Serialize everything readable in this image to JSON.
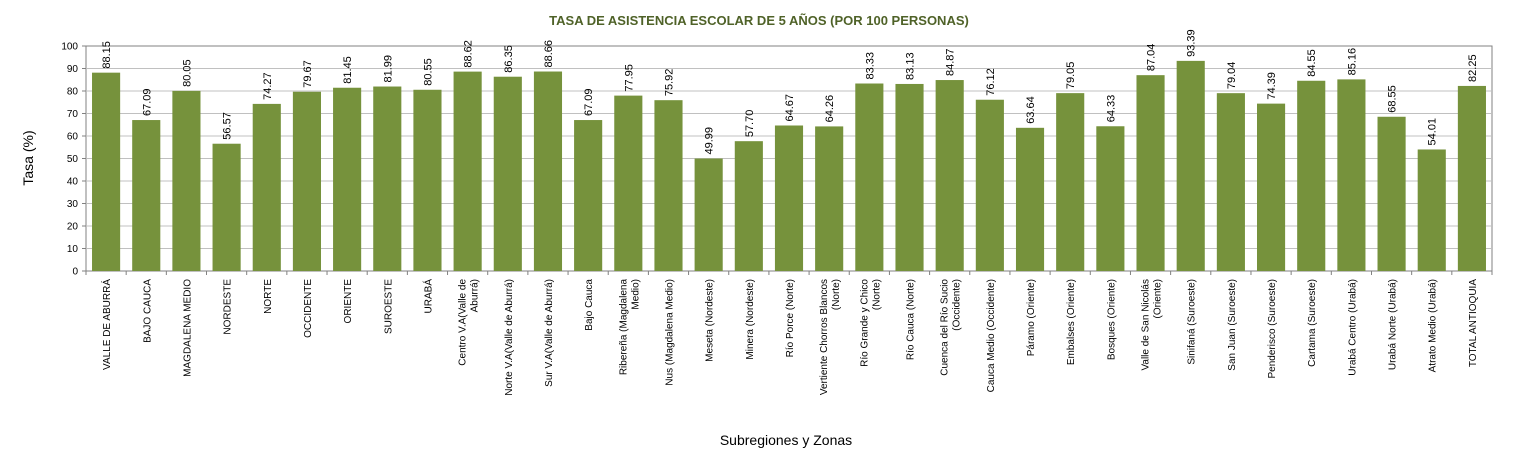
{
  "colors": {
    "bar": "#76923c",
    "title": "#4f6228",
    "grid": "#c0c0c0",
    "axis": "#808080"
  },
  "chart_data": {
    "type": "bar",
    "title": "TASA DE ASISTENCIA ESCOLAR DE 5 AÑOS (POR 100 PERSONAS)",
    "xlabel": "Subregiones y Zonas",
    "ylabel": "Tasa (%)",
    "ylim": [
      0,
      100
    ],
    "yticks": [
      0,
      10,
      20,
      30,
      40,
      50,
      60,
      70,
      80,
      90,
      100
    ],
    "grid": true,
    "categories": [
      [
        "VALLE DE ABURRÁ"
      ],
      [
        "BAJO CAUCA"
      ],
      [
        "MAGDALENA MEDIO"
      ],
      [
        "NORDESTE"
      ],
      [
        "NORTE"
      ],
      [
        "OCCIDENTE"
      ],
      [
        "ORIENTE"
      ],
      [
        "SUROESTE"
      ],
      [
        "URABÁ"
      ],
      [
        "Centro V.A(Valle de",
        "Aburrá)"
      ],
      [
        "Norte V.A(Valle de Aburrá)"
      ],
      [
        "Sur V.A(Valle de Aburrá)"
      ],
      [
        "Bajo Cauca"
      ],
      [
        "Ribereña (Magdalena",
        "Medio)"
      ],
      [
        "Nus (Magdalena Medio)"
      ],
      [
        "Meseta (Nordeste)"
      ],
      [
        "Minera (Nordeste)"
      ],
      [
        "Río Porce (Norte)"
      ],
      [
        "Vertiente Chorros Blancos",
        "(Norte)"
      ],
      [
        "Río Grande y Chico",
        "(Norte)"
      ],
      [
        "Río Cauca (Norte)"
      ],
      [
        "Cuenca del Río Sucio",
        "(Occidente)"
      ],
      [
        "Cauca Medio (Occidente)"
      ],
      [
        "Páramo (Oriente)"
      ],
      [
        "Embalses (Oriente)"
      ],
      [
        "Bosques (Oriente)"
      ],
      [
        "Valle de San Nicolás",
        "(Oriente)"
      ],
      [
        "Sinifaná (Suroeste)"
      ],
      [
        "San Juan (Suroeste)"
      ],
      [
        "Penderisco (Suroeste)"
      ],
      [
        "Cartama (Suroeste)"
      ],
      [
        "Urabá Centro (Urabá)"
      ],
      [
        "Urabá Norte (Urabá)"
      ],
      [
        "Atrato Medio (Urabá)"
      ],
      [
        "TOTAL ANTIOQUIA"
      ]
    ],
    "values": [
      88.15,
      67.09,
      80.05,
      56.57,
      74.27,
      79.67,
      81.45,
      81.99,
      80.55,
      88.62,
      86.35,
      88.66,
      67.09,
      77.95,
      75.92,
      49.99,
      57.7,
      64.67,
      64.26,
      83.33,
      83.13,
      84.87,
      76.12,
      63.64,
      79.05,
      64.33,
      87.04,
      93.39,
      79.04,
      74.39,
      84.55,
      85.16,
      68.55,
      54.01,
      82.25
    ],
    "value_labels": [
      "88.15",
      "67.09",
      "80.05",
      "56.57",
      "74.27",
      "79.67",
      "81.45",
      "81.99",
      "80.55",
      "88.62",
      "86.35",
      "88.66",
      "67.09",
      "77.95",
      "75.92",
      "49.99",
      "57.70",
      "64.67",
      "64.26",
      "83.33",
      "83.13",
      "84.87",
      "76.12",
      "63.64",
      "79.05",
      "64.33",
      "87.04",
      "93.39",
      "79.04",
      "74.39",
      "84.55",
      "85.16",
      "68.55",
      "54.01",
      "82.25"
    ]
  }
}
